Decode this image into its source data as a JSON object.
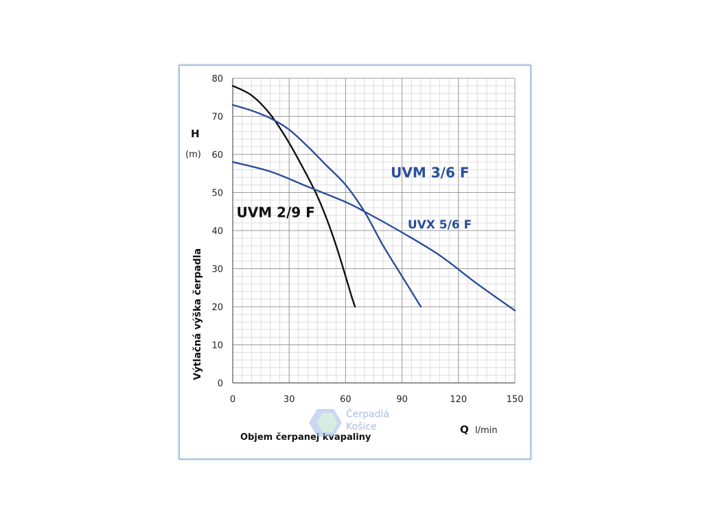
{
  "chart_data": {
    "type": "line",
    "title": "",
    "xlabel": "Objem čerpanej kvapaliny",
    "x_symbol": "Q",
    "x_unit": "l/min",
    "y_symbol": "H",
    "y_unit": "(m)",
    "ylabel": "Výtlačná výška čerpadla",
    "xlim": [
      0,
      150
    ],
    "ylim": [
      0,
      80
    ],
    "x_ticks": [
      0,
      30,
      60,
      90,
      120,
      150
    ],
    "y_ticks": [
      0,
      10,
      20,
      30,
      40,
      50,
      60,
      70,
      80
    ],
    "grid": true,
    "series": [
      {
        "name": "UVM 2/9 F",
        "color": "#111111",
        "points": [
          [
            0,
            78
          ],
          [
            10,
            75.5
          ],
          [
            20,
            70.5
          ],
          [
            30,
            63
          ],
          [
            40,
            54
          ],
          [
            45,
            49
          ],
          [
            50,
            43
          ],
          [
            55,
            36
          ],
          [
            60,
            28
          ],
          [
            63,
            23
          ],
          [
            65,
            20
          ]
        ]
      },
      {
        "name": "UVM 3/6 F",
        "color": "#2a4e9a",
        "points": [
          [
            0,
            73
          ],
          [
            10,
            71.5
          ],
          [
            20,
            69.5
          ],
          [
            30,
            66.5
          ],
          [
            40,
            62
          ],
          [
            50,
            57
          ],
          [
            60,
            52
          ],
          [
            70,
            45
          ],
          [
            80,
            36
          ],
          [
            90,
            28
          ],
          [
            100,
            20
          ]
        ]
      },
      {
        "name": "UVX 5/6 F",
        "color": "#2a4e9a",
        "points": [
          [
            0,
            58
          ],
          [
            20,
            55.5
          ],
          [
            40,
            51.5
          ],
          [
            60,
            47.5
          ],
          [
            70,
            45
          ],
          [
            90,
            39.5
          ],
          [
            110,
            33.5
          ],
          [
            130,
            26
          ],
          [
            150,
            19
          ]
        ]
      }
    ]
  },
  "watermark": {
    "line1": "Čerpadlá",
    "line2": "Košice"
  }
}
